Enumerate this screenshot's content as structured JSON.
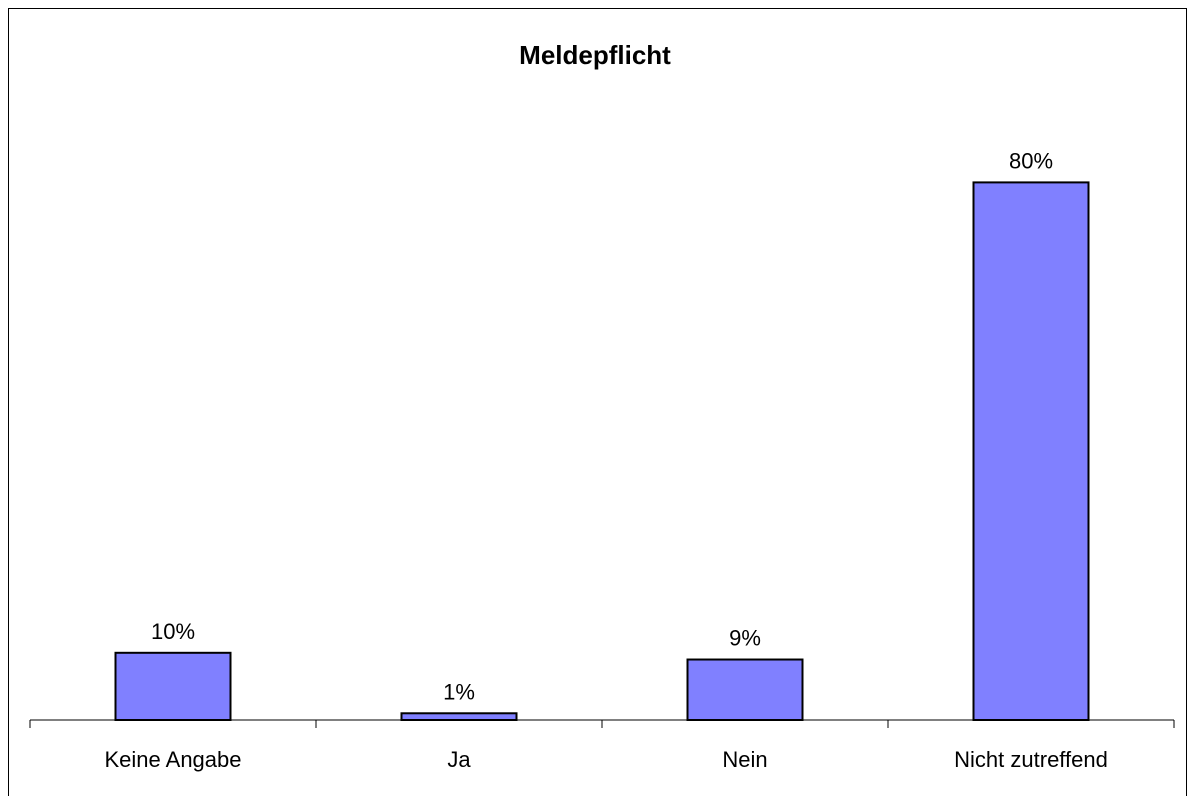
{
  "chart_data": {
    "type": "bar",
    "title": "Meldepflicht",
    "categories": [
      "Keine Angabe",
      "Ja",
      "Nein",
      "Nicht zutreffend"
    ],
    "values": [
      10,
      1,
      9,
      80
    ],
    "data_labels": [
      "10%",
      "1%",
      "9%",
      "80%"
    ],
    "xlabel": "",
    "ylabel": "",
    "ylim": [
      0,
      100
    ],
    "grid": false,
    "bar_color": "#8080FF",
    "bar_outline_color": "#000000"
  }
}
